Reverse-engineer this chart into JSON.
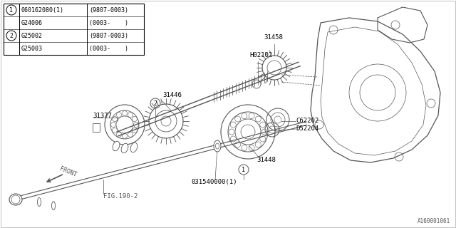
{
  "bg_color": "#ffffff",
  "line_color": "#555555",
  "table_rows": [
    {
      "circle": "1",
      "part": "060162080(1)",
      "spec": "(9807-0003)"
    },
    {
      "circle": "",
      "part": "G24006",
      "spec": "(0003-    )"
    },
    {
      "circle": "2",
      "part": "G25002",
      "spec": "(9807-0003)"
    },
    {
      "circle": "",
      "part": "G25003",
      "spec": "(0003-    )"
    }
  ],
  "ref_code": "A160001061",
  "label_fontsize": 6.5
}
